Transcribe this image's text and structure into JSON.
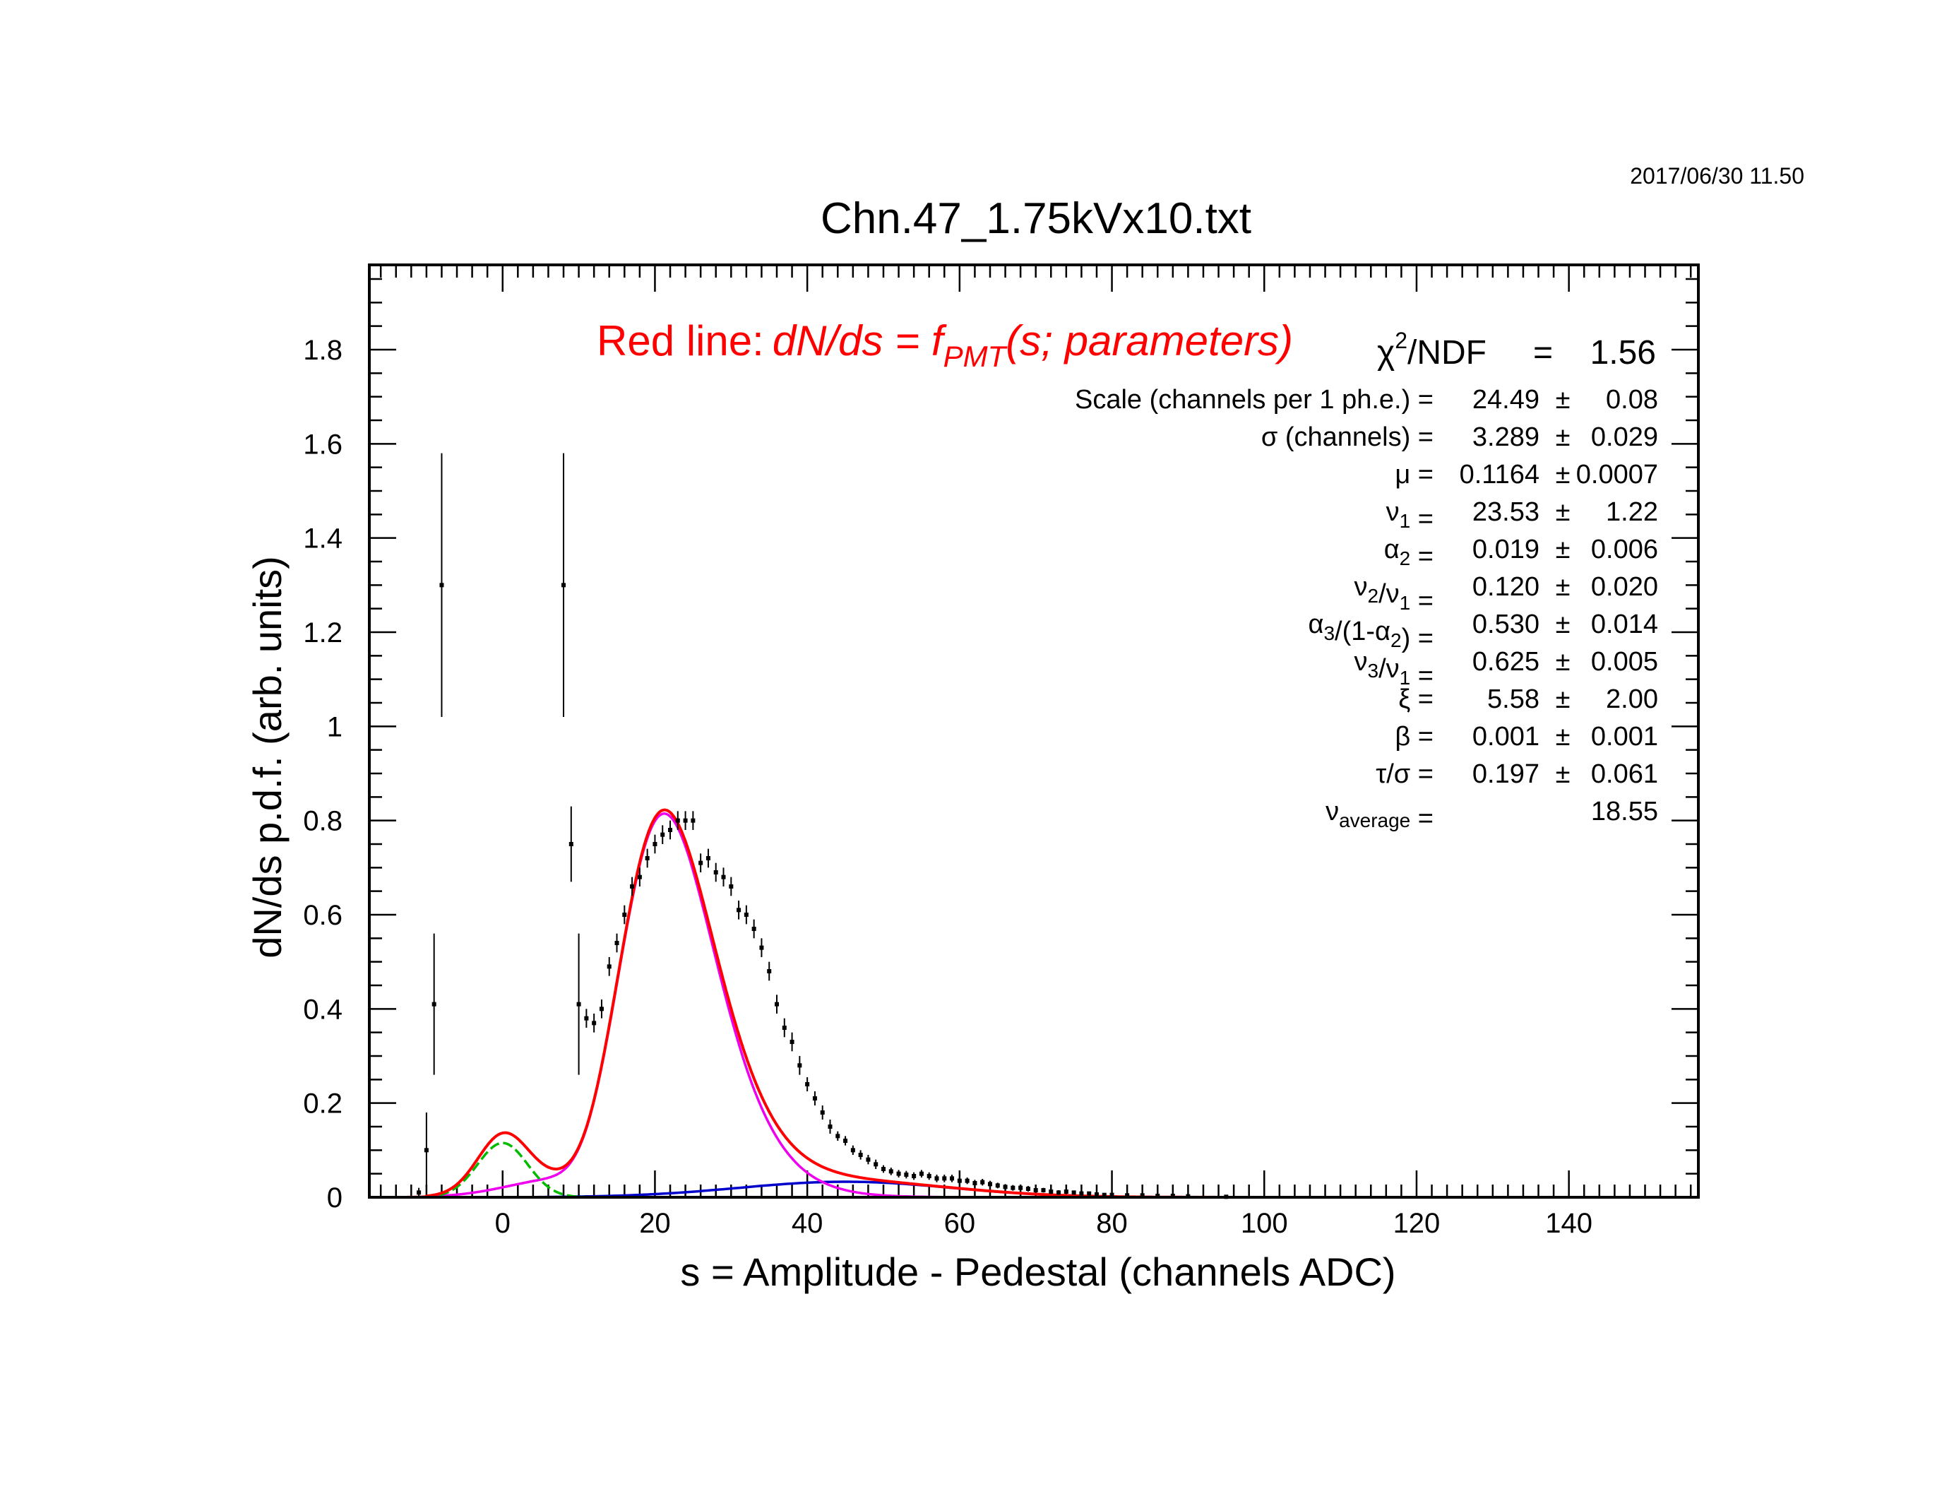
{
  "timestamp": "2017/06/30   11.50",
  "chart_data": {
    "type": "scatter",
    "title": "Chn.47_1.75kVx10.txt",
    "xlabel": "s = Amplitude - Pedestal (channels ADC)",
    "ylabel": "dN/ds p.d.f. (arb. units)",
    "xlim": [
      -17.5,
      157
    ],
    "ylim": [
      0,
      1.98
    ],
    "xticks": [
      0,
      20,
      40,
      60,
      80,
      100,
      120,
      140
    ],
    "yticks": [
      0,
      0.2,
      0.4,
      0.6,
      0.8,
      1,
      1.2,
      1.4,
      1.6,
      1.8
    ],
    "grid": false,
    "colors": {
      "total": "#ff0000",
      "pedestal": "#00bb00",
      "spe": "#ee00ee",
      "second": "#0000cc",
      "data": "#000000"
    },
    "params": {
      "scale": 24.49,
      "sigma": 3.289,
      "mu": 0.1164,
      "nu1": 23.53,
      "alpha2": 0.019,
      "nu2_nu1": 0.12,
      "alpha3_frac": 0.53,
      "nu3_nu1": 0.625,
      "xi": 5.58,
      "beta": 0.001,
      "tau_sigma": 0.197,
      "nu_average": 18.55
    },
    "annotation": {
      "lead": "Red line:",
      "formula_a": "dN/ds = f",
      "formula_sub": "PMT",
      "formula_b": "(s; parameters)"
    },
    "chi2": {
      "symbol": "χ",
      "sup": "2",
      "label": "/NDF",
      "eq": "=",
      "value": "1.56"
    },
    "fit_params": [
      {
        "parts": [
          {
            "t": "Scale (channels per 1 ph.e.) ="
          }
        ],
        "value": "24.49",
        "pm": "±",
        "err": "0.08"
      },
      {
        "parts": [
          {
            "t": "σ (channels) ="
          }
        ],
        "value": "3.289",
        "pm": "±",
        "err": "0.029"
      },
      {
        "parts": [
          {
            "t": "μ  ="
          }
        ],
        "value": "0.1164",
        "pm": "±",
        "err": "0.0007"
      },
      {
        "parts": [
          {
            "t": "ν"
          },
          {
            "t": "1",
            "sub": true
          },
          {
            "t": " ="
          }
        ],
        "value": "23.53",
        "pm": "±",
        "err": "1.22"
      },
      {
        "parts": [
          {
            "t": "α"
          },
          {
            "t": "2",
            "sub": true
          },
          {
            "t": " ="
          }
        ],
        "value": "0.019",
        "pm": "±",
        "err": "0.006"
      },
      {
        "parts": [
          {
            "t": "ν"
          },
          {
            "t": "2",
            "sub": true
          },
          {
            "t": "/ν"
          },
          {
            "t": "1",
            "sub": true
          },
          {
            "t": " ="
          }
        ],
        "value": "0.120",
        "pm": "±",
        "err": "0.020"
      },
      {
        "parts": [
          {
            "t": "α"
          },
          {
            "t": "3",
            "sub": true
          },
          {
            "t": "/(1-α"
          },
          {
            "t": "2",
            "sub": true
          },
          {
            "t": ") ="
          }
        ],
        "value": "0.530",
        "pm": "±",
        "err": "0.014"
      },
      {
        "parts": [
          {
            "t": "ν"
          },
          {
            "t": "3",
            "sub": true
          },
          {
            "t": "/ν"
          },
          {
            "t": "1",
            "sub": true
          },
          {
            "t": " ="
          }
        ],
        "value": "0.625",
        "pm": "±",
        "err": "0.005"
      },
      {
        "parts": [
          {
            "t": "ξ  ="
          }
        ],
        "value": "5.58",
        "pm": "±",
        "err": "2.00"
      },
      {
        "parts": [
          {
            "t": "β  ="
          }
        ],
        "value": "0.001",
        "pm": "±",
        "err": "0.001"
      },
      {
        "parts": [
          {
            "t": "τ/σ ="
          }
        ],
        "value": "0.197",
        "pm": "±",
        "err": "0.061"
      },
      {
        "parts": [
          {
            "t": "ν"
          },
          {
            "t": "average",
            "sub": true
          },
          {
            "t": "  ="
          }
        ],
        "value": "18.55",
        "pm": "",
        "err": ""
      }
    ],
    "data_points": [
      {
        "x": -11,
        "y": 0.01,
        "e": 0.01
      },
      {
        "x": -10,
        "y": 0.1,
        "e": 0.08
      },
      {
        "x": -9,
        "y": 0.41,
        "e": 0.15
      },
      {
        "x": -8,
        "y": 1.3,
        "e": 0.28
      },
      {
        "x": 8,
        "y": 1.3,
        "e": 0.28
      },
      {
        "x": 9,
        "y": 0.75,
        "e": 0.08
      },
      {
        "x": 10,
        "y": 0.41,
        "e": 0.15
      },
      {
        "x": 11,
        "y": 0.38,
        "e": 0.02
      },
      {
        "x": 12,
        "y": 0.37,
        "e": 0.02
      },
      {
        "x": 13,
        "y": 0.4,
        "e": 0.02
      },
      {
        "x": 14,
        "y": 0.49,
        "e": 0.02
      },
      {
        "x": 15,
        "y": 0.54,
        "e": 0.02
      },
      {
        "x": 16,
        "y": 0.6,
        "e": 0.02
      },
      {
        "x": 17,
        "y": 0.66,
        "e": 0.02
      },
      {
        "x": 18,
        "y": 0.68,
        "e": 0.02
      },
      {
        "x": 19,
        "y": 0.72,
        "e": 0.02
      },
      {
        "x": 20,
        "y": 0.75,
        "e": 0.02
      },
      {
        "x": 21,
        "y": 0.77,
        "e": 0.02
      },
      {
        "x": 22,
        "y": 0.78,
        "e": 0.02
      },
      {
        "x": 23,
        "y": 0.8,
        "e": 0.02
      },
      {
        "x": 24,
        "y": 0.8,
        "e": 0.02
      },
      {
        "x": 25,
        "y": 0.8,
        "e": 0.02
      },
      {
        "x": 26,
        "y": 0.71,
        "e": 0.02
      },
      {
        "x": 27,
        "y": 0.72,
        "e": 0.02
      },
      {
        "x": 28,
        "y": 0.69,
        "e": 0.02
      },
      {
        "x": 29,
        "y": 0.68,
        "e": 0.02
      },
      {
        "x": 30,
        "y": 0.66,
        "e": 0.02
      },
      {
        "x": 31,
        "y": 0.61,
        "e": 0.02
      },
      {
        "x": 32,
        "y": 0.6,
        "e": 0.02
      },
      {
        "x": 33,
        "y": 0.57,
        "e": 0.02
      },
      {
        "x": 34,
        "y": 0.53,
        "e": 0.02
      },
      {
        "x": 35,
        "y": 0.48,
        "e": 0.02
      },
      {
        "x": 36,
        "y": 0.41,
        "e": 0.02
      },
      {
        "x": 37,
        "y": 0.36,
        "e": 0.02
      },
      {
        "x": 38,
        "y": 0.33,
        "e": 0.02
      },
      {
        "x": 39,
        "y": 0.28,
        "e": 0.02
      },
      {
        "x": 40,
        "y": 0.24,
        "e": 0.015
      },
      {
        "x": 41,
        "y": 0.21,
        "e": 0.015
      },
      {
        "x": 42,
        "y": 0.18,
        "e": 0.015
      },
      {
        "x": 43,
        "y": 0.15,
        "e": 0.015
      },
      {
        "x": 44,
        "y": 0.13,
        "e": 0.01
      },
      {
        "x": 45,
        "y": 0.12,
        "e": 0.01
      },
      {
        "x": 46,
        "y": 0.1,
        "e": 0.01
      },
      {
        "x": 47,
        "y": 0.09,
        "e": 0.01
      },
      {
        "x": 48,
        "y": 0.08,
        "e": 0.01
      },
      {
        "x": 49,
        "y": 0.07,
        "e": 0.01
      },
      {
        "x": 50,
        "y": 0.06,
        "e": 0.008
      },
      {
        "x": 51,
        "y": 0.055,
        "e": 0.008
      },
      {
        "x": 52,
        "y": 0.05,
        "e": 0.008
      },
      {
        "x": 53,
        "y": 0.048,
        "e": 0.008
      },
      {
        "x": 54,
        "y": 0.045,
        "e": 0.008
      },
      {
        "x": 55,
        "y": 0.05,
        "e": 0.008
      },
      {
        "x": 56,
        "y": 0.045,
        "e": 0.008
      },
      {
        "x": 57,
        "y": 0.04,
        "e": 0.008
      },
      {
        "x": 58,
        "y": 0.04,
        "e": 0.008
      },
      {
        "x": 59,
        "y": 0.04,
        "e": 0.008
      },
      {
        "x": 60,
        "y": 0.035,
        "e": 0.007
      },
      {
        "x": 61,
        "y": 0.035,
        "e": 0.007
      },
      {
        "x": 62,
        "y": 0.03,
        "e": 0.007
      },
      {
        "x": 63,
        "y": 0.032,
        "e": 0.007
      },
      {
        "x": 64,
        "y": 0.028,
        "e": 0.007
      },
      {
        "x": 65,
        "y": 0.025,
        "e": 0.006
      },
      {
        "x": 66,
        "y": 0.022,
        "e": 0.006
      },
      {
        "x": 67,
        "y": 0.02,
        "e": 0.006
      },
      {
        "x": 68,
        "y": 0.02,
        "e": 0.006
      },
      {
        "x": 69,
        "y": 0.018,
        "e": 0.006
      },
      {
        "x": 70,
        "y": 0.015,
        "e": 0.005
      },
      {
        "x": 71,
        "y": 0.015,
        "e": 0.005
      },
      {
        "x": 72,
        "y": 0.012,
        "e": 0.005
      },
      {
        "x": 73,
        "y": 0.01,
        "e": 0.005
      },
      {
        "x": 74,
        "y": 0.012,
        "e": 0.005
      },
      {
        "x": 75,
        "y": 0.01,
        "e": 0.004
      },
      {
        "x": 76,
        "y": 0.008,
        "e": 0.004
      },
      {
        "x": 77,
        "y": 0.008,
        "e": 0.004
      },
      {
        "x": 78,
        "y": 0.006,
        "e": 0.004
      },
      {
        "x": 79,
        "y": 0.005,
        "e": 0.004
      },
      {
        "x": 80,
        "y": 0.005,
        "e": 0.004
      },
      {
        "x": 82,
        "y": 0.004,
        "e": 0.003
      },
      {
        "x": 84,
        "y": 0.004,
        "e": 0.003
      },
      {
        "x": 86,
        "y": 0.003,
        "e": 0.003
      },
      {
        "x": 88,
        "y": 0.003,
        "e": 0.003
      },
      {
        "x": 90,
        "y": 0.002,
        "e": 0.002
      },
      {
        "x": 95,
        "y": 0.001,
        "e": 0.002
      }
    ]
  }
}
